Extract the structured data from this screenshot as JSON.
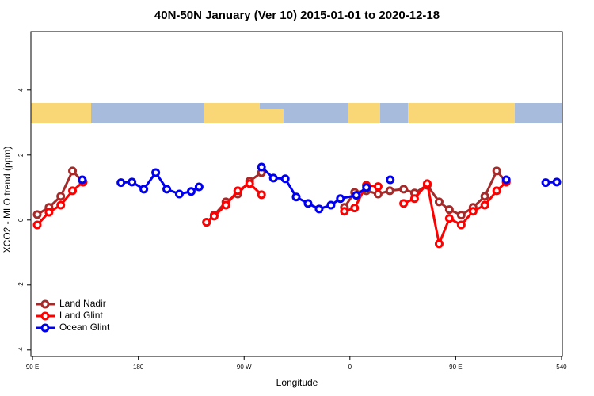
{
  "chart_data": {
    "type": "line",
    "title": "40N-50N January (Ver 10)   2015-01-01 to 2020-12-18",
    "x_label": "Longitude",
    "y_label": "XCO2 - MLO trend (ppm)",
    "xlim": [
      88.6,
      540.7
    ],
    "ylim": [
      -4.2,
      5.8
    ],
    "xticks": [
      {
        "value": 90,
        "label": "90 E"
      },
      180,
      {
        "value": 270,
        "label": "90 W"
      },
      {
        "value": 360,
        "label": "0"
      },
      {
        "value": 450,
        "label": "90 E"
      },
      540
    ],
    "yticks": [
      -4,
      -2,
      0,
      2,
      4
    ],
    "legend": "bottomleft",
    "series": [
      {
        "name": "Land Nadir",
        "color": "#a52a2a",
        "x": [
          94,
          104,
          114,
          124,
          133,
          null,
          238,
          244.5,
          254.5,
          264.6,
          274.7,
          284.8,
          null,
          355.3,
          364,
          374,
          384,
          394,
          405.7,
          415,
          425.8,
          435.9,
          444.6,
          454.7,
          464.8,
          474.8,
          484.9,
          493
        ],
        "values": [
          0.17,
          0.39,
          0.73,
          1.51,
          1.17,
          null,
          -0.07,
          0.15,
          0.56,
          0.8,
          1.2,
          1.46,
          null,
          0.39,
          0.85,
          0.9,
          0.8,
          0.9,
          0.95,
          0.83,
          1.07,
          0.56,
          0.32,
          0.15,
          0.39,
          0.73,
          1.51,
          1.17
        ]
      },
      {
        "name": "Land Glint",
        "color": "#ff0000",
        "x": [
          94,
          104,
          114,
          124,
          133,
          null,
          238,
          244.5,
          254.5,
          264.6,
          274.7,
          284.8,
          null,
          355.3,
          364,
          374,
          384,
          null,
          405.7,
          415,
          425.8,
          435.9,
          444.6,
          454.7,
          464.8,
          474.8,
          484.9,
          493
        ],
        "values": [
          -0.15,
          0.24,
          0.46,
          0.9,
          1.17,
          null,
          -0.07,
          0.12,
          0.46,
          0.9,
          1.12,
          0.78,
          null,
          0.27,
          0.37,
          1.07,
          1.03,
          null,
          0.51,
          0.66,
          1.12,
          -0.73,
          0.05,
          -0.15,
          0.27,
          0.46,
          0.9,
          1.17
        ]
      },
      {
        "name": "Ocean Glint",
        "color": "#0000ee",
        "x": [
          132.3,
          null,
          165.2,
          174.6,
          184.7,
          194.8,
          204.2,
          214.9,
          225,
          231.7,
          null,
          284.8,
          294.9,
          305,
          314.3,
          324.4,
          333.8,
          343.9,
          351.9,
          365.4,
          374.1,
          null,
          394.3,
          null,
          493,
          null,
          526.6,
          536
        ],
        "values": [
          1.24,
          null,
          1.15,
          1.17,
          0.95,
          1.46,
          0.95,
          0.8,
          0.88,
          1.02,
          null,
          1.63,
          1.29,
          1.27,
          0.71,
          0.51,
          0.34,
          0.46,
          0.66,
          0.76,
          1.0,
          null,
          1.24,
          null,
          1.24,
          null,
          1.15,
          1.17
        ]
      }
    ]
  }
}
